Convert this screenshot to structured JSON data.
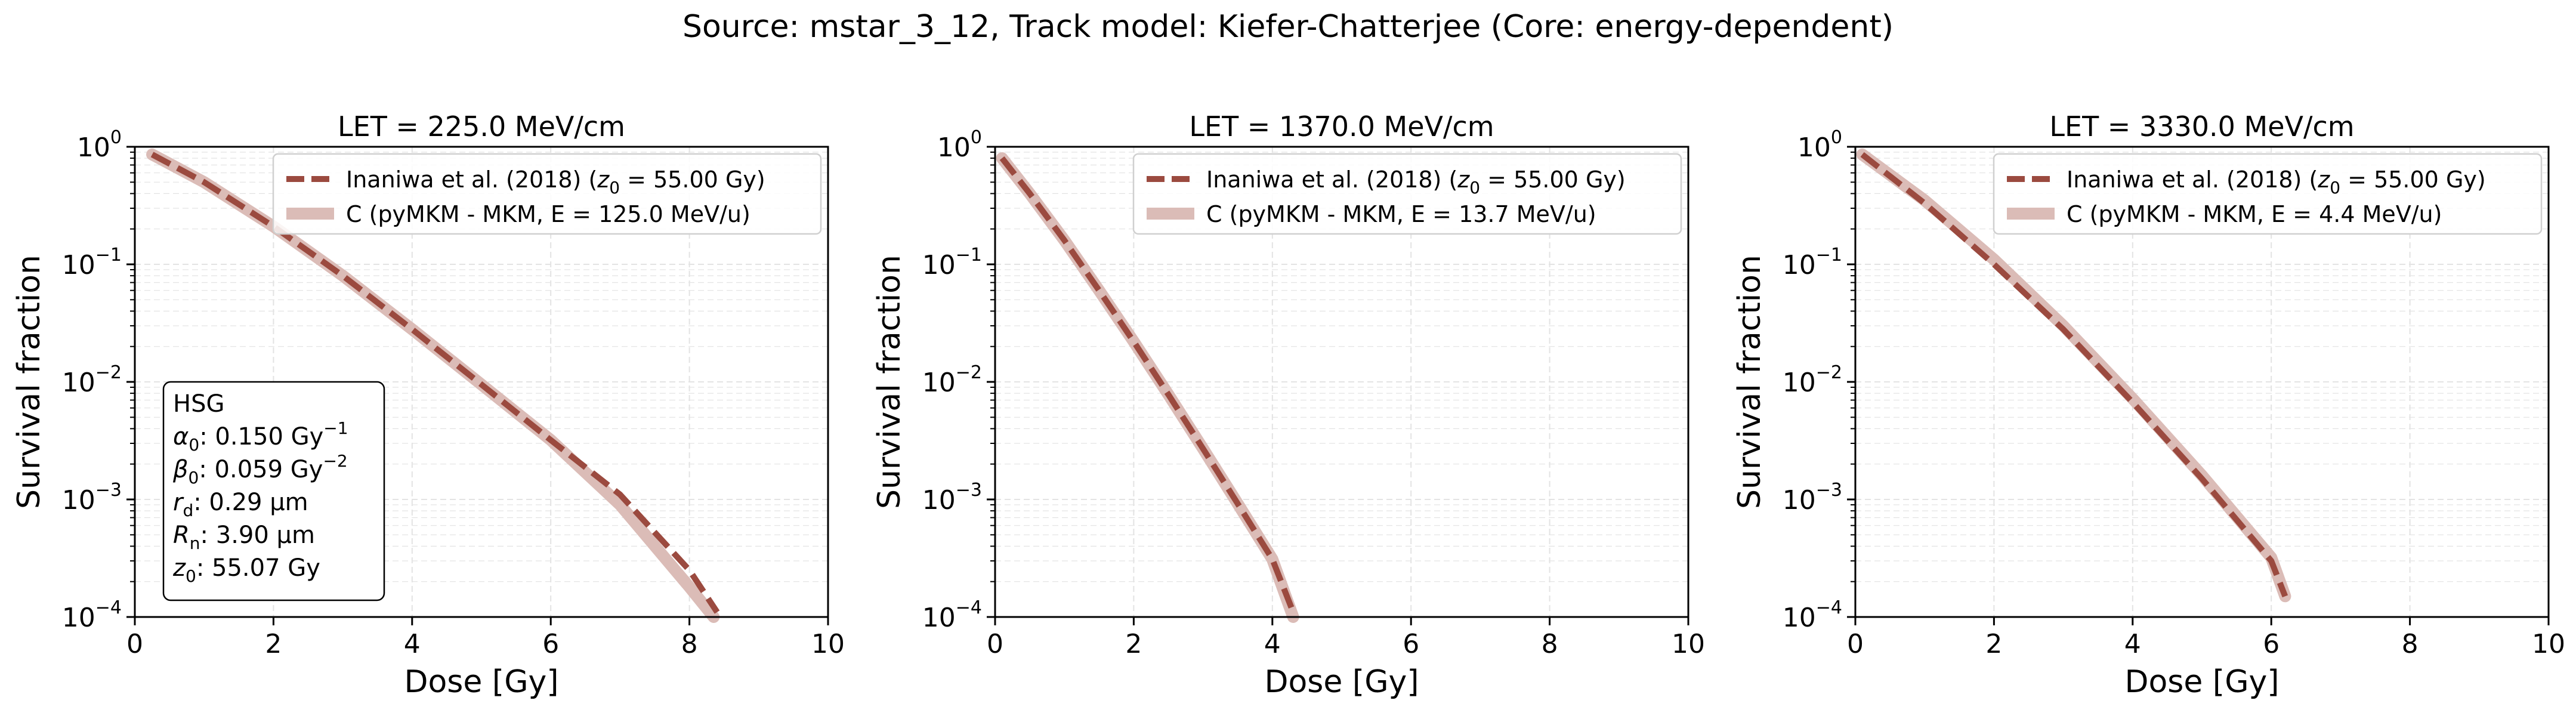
{
  "figure": {
    "title": "Source: mstar_3_12, Track model: Kiefer-Chatterjee (Core: energy-dependent)"
  },
  "info_box": {
    "line1": "HSG",
    "alpha0": {
      "sym": "α",
      "sub": "0",
      "text": ": 0.150 Gy",
      "sup": "−1"
    },
    "beta0": {
      "sym": "β",
      "sub": "0",
      "text": ": 0.059 Gy",
      "sup": "−2"
    },
    "rd": {
      "sym": "r",
      "sub": "d",
      "text": ": 0.29 μm"
    },
    "Rn": {
      "sym": "R",
      "sub": "n",
      "text": ": 3.90 μm"
    },
    "z0": {
      "sym": "z",
      "sub": "0",
      "text": ": 55.07 Gy"
    }
  },
  "colors": {
    "dashed_line": "#9b4a3f",
    "solid_line": "#dbbcb7",
    "grid": "#e3e3e3",
    "legend_border": "#d0d0d0"
  },
  "chart_data": [
    {
      "type": "line",
      "title": "LET = 225.0 MeV/cm",
      "xlabel": "Dose [Gy]",
      "ylabel": "Survival fraction",
      "xlim": [
        0,
        10
      ],
      "ylim": [
        0.0001,
        1
      ],
      "yscale": "log",
      "xticks": [
        "0",
        "2",
        "4",
        "6",
        "8",
        "10"
      ],
      "yticks": [
        {
          "base": "10",
          "exp": "−4"
        },
        {
          "base": "10",
          "exp": "−3"
        },
        {
          "base": "10",
          "exp": "−2"
        },
        {
          "base": "10",
          "exp": "−1"
        },
        {
          "base": "10",
          "exp": "0"
        }
      ],
      "grid": true,
      "legend_position": "top-right",
      "series": [
        {
          "name": "Inaniwa et al. (2018) (z0 = 55.00 Gy)",
          "legend": {
            "pre": "Inaniwa et al. (2018) (",
            "sym": "z",
            "sub": "0",
            "post": " = 55.00 Gy)"
          },
          "style": "dashed",
          "x": [
            0.25,
            1,
            2,
            3,
            4,
            5,
            6,
            7,
            8,
            8.4
          ],
          "y": [
            0.86,
            0.5,
            0.21,
            0.08,
            0.028,
            0.0095,
            0.0032,
            0.0011,
            0.00025,
            0.00011
          ]
        },
        {
          "name": "C (pyMKM - MKM, E = 125.0 MeV/u)",
          "legend": {
            "pre": "C (pyMKM - MKM, E = 125.0 MeV/u)"
          },
          "style": "solid",
          "x": [
            0.25,
            1,
            2,
            3,
            4,
            5,
            6,
            7,
            8,
            8.35
          ],
          "y": [
            0.86,
            0.5,
            0.21,
            0.08,
            0.028,
            0.0095,
            0.0032,
            0.0009,
            0.00018,
            0.0001
          ]
        }
      ]
    },
    {
      "type": "line",
      "title": "LET = 1370.0 MeV/cm",
      "xlabel": "Dose [Gy]",
      "ylabel": "Survival fraction",
      "xlim": [
        0,
        10
      ],
      "ylim": [
        0.0001,
        1
      ],
      "yscale": "log",
      "xticks": [
        "0",
        "2",
        "4",
        "6",
        "8",
        "10"
      ],
      "yticks": [
        {
          "base": "10",
          "exp": "−4"
        },
        {
          "base": "10",
          "exp": "−3"
        },
        {
          "base": "10",
          "exp": "−2"
        },
        {
          "base": "10",
          "exp": "−1"
        },
        {
          "base": "10",
          "exp": "0"
        }
      ],
      "grid": true,
      "legend_position": "top-right",
      "series": [
        {
          "name": "Inaniwa et al. (2018) (z0 = 55.00 Gy)",
          "legend": {
            "pre": "Inaniwa et al. (2018) (",
            "sym": "z",
            "sub": "0",
            "post": " = 55.00 Gy)"
          },
          "style": "dashed",
          "x": [
            0.1,
            0.5,
            1,
            1.5,
            2,
            2.5,
            3,
            3.5,
            4,
            4.3
          ],
          "y": [
            0.8,
            0.4,
            0.16,
            0.06,
            0.022,
            0.0078,
            0.0027,
            0.00092,
            0.00031,
            0.00011
          ]
        },
        {
          "name": "C (pyMKM - MKM, E = 13.7 MeV/u)",
          "legend": {
            "pre": "C (pyMKM - MKM, E = 13.7 MeV/u)"
          },
          "style": "solid",
          "x": [
            0.1,
            0.5,
            1,
            1.5,
            2,
            2.5,
            3,
            3.5,
            4,
            4.3
          ],
          "y": [
            0.8,
            0.4,
            0.16,
            0.06,
            0.022,
            0.0078,
            0.0027,
            0.00092,
            0.00031,
            0.0001
          ]
        }
      ]
    },
    {
      "type": "line",
      "title": "LET = 3330.0 MeV/cm",
      "xlabel": "Dose [Gy]",
      "ylabel": "Survival fraction",
      "xlim": [
        0,
        10
      ],
      "ylim": [
        0.0001,
        1
      ],
      "yscale": "log",
      "xticks": [
        "0",
        "2",
        "4",
        "6",
        "8",
        "10"
      ],
      "yticks": [
        {
          "base": "10",
          "exp": "−4"
        },
        {
          "base": "10",
          "exp": "−3"
        },
        {
          "base": "10",
          "exp": "−2"
        },
        {
          "base": "10",
          "exp": "−1"
        },
        {
          "base": "10",
          "exp": "0"
        }
      ],
      "grid": true,
      "legend_position": "top-right",
      "series": [
        {
          "name": "Inaniwa et al. (2018) (z0 = 55.00 Gy)",
          "legend": {
            "pre": "Inaniwa et al. (2018) (",
            "sym": "z",
            "sub": "0",
            "post": " = 55.00 Gy)"
          },
          "style": "dashed",
          "x": [
            0.1,
            1,
            2,
            3,
            4,
            5,
            6,
            6.2
          ],
          "y": [
            0.86,
            0.33,
            0.1,
            0.028,
            0.0067,
            0.0015,
            0.0003,
            0.00015
          ]
        },
        {
          "name": "C (pyMKM - MKM, E = 4.4 MeV/u)",
          "legend": {
            "pre": "C (pyMKM - MKM, E = 4.4 MeV/u)"
          },
          "style": "solid",
          "x": [
            0.1,
            1,
            2,
            3,
            4,
            5,
            6,
            6.2
          ],
          "y": [
            0.86,
            0.35,
            0.11,
            0.03,
            0.0072,
            0.0016,
            0.00032,
            0.00015
          ]
        }
      ]
    }
  ]
}
